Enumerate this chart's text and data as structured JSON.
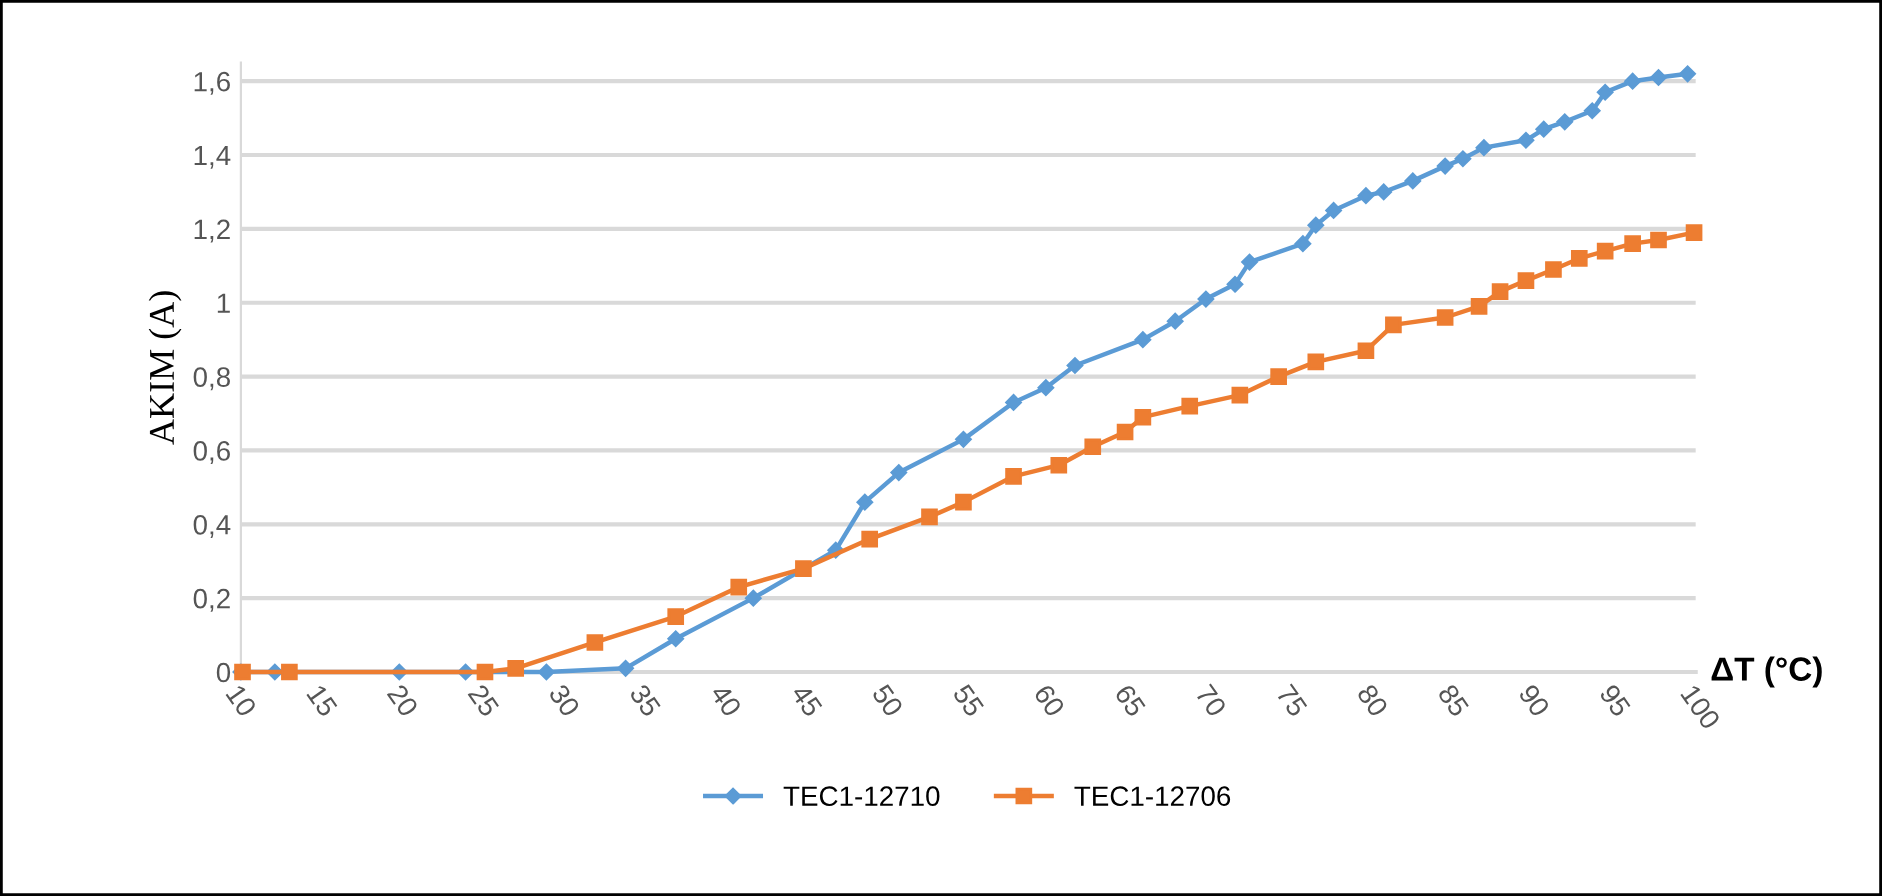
{
  "chart_data": {
    "type": "line",
    "ylabel": "AKIM (A)",
    "xlabel": "ΔT (°C)",
    "xlim": [
      10,
      100
    ],
    "xticks": [
      10,
      15,
      20,
      25,
      30,
      35,
      40,
      45,
      50,
      55,
      60,
      65,
      70,
      75,
      80,
      85,
      90,
      95,
      100
    ],
    "ylim": [
      0,
      1.65
    ],
    "yticks": [
      {
        "value": 0,
        "label": "0"
      },
      {
        "value": 0.2,
        "label": "0,2"
      },
      {
        "value": 0.4,
        "label": "0,4"
      },
      {
        "value": 0.6,
        "label": "0,6"
      },
      {
        "value": 0.8,
        "label": "0,8"
      },
      {
        "value": 1,
        "label": "1"
      },
      {
        "value": 1.2,
        "label": "1,2"
      },
      {
        "value": 1.4,
        "label": "1,4"
      },
      {
        "value": 1.6,
        "label": "1,6"
      }
    ],
    "grid": "y",
    "legend": "bottom",
    "series": [
      {
        "name": "TEC1-12710",
        "color": "#5b9bd5",
        "marker": "diamond",
        "x": [
          10,
          12.1,
          19.8,
          23.9,
          28.9,
          33.8,
          36.9,
          41.7,
          46.8,
          48.6,
          50.7,
          54.7,
          57.8,
          59.8,
          61.6,
          65.8,
          67.8,
          69.7,
          71.5,
          72.4,
          75.7,
          76.5,
          77.6,
          79.6,
          80.7,
          82.5,
          84.5,
          85.6,
          86.9,
          89.5,
          90.6,
          91.9,
          93.6,
          94.4,
          96.1,
          97.7,
          99.5
        ],
        "values": [
          0,
          0,
          0,
          0,
          0,
          0.01,
          0.09,
          0.2,
          0.33,
          0.46,
          0.54,
          0.63,
          0.73,
          0.77,
          0.83,
          0.9,
          0.95,
          1.01,
          1.05,
          1.11,
          1.16,
          1.21,
          1.25,
          1.29,
          1.3,
          1.33,
          1.37,
          1.39,
          1.42,
          1.44,
          1.47,
          1.49,
          1.52,
          1.57,
          1.6,
          1.61,
          1.62
        ]
      },
      {
        "name": "TEC1-12706",
        "color": "#ed7d31",
        "marker": "square",
        "x": [
          10.1,
          13,
          25.1,
          27,
          31.9,
          36.9,
          40.8,
          44.8,
          48.9,
          52.6,
          54.7,
          57.8,
          60.6,
          62.7,
          64.7,
          65.8,
          68.7,
          71.8,
          74.2,
          76.5,
          79.6,
          81.3,
          84.5,
          86.6,
          87.9,
          89.5,
          91.2,
          92.8,
          94.4,
          96.1,
          97.7,
          99.9
        ],
        "values": [
          0,
          0,
          0,
          0.01,
          0.08,
          0.15,
          0.23,
          0.28,
          0.36,
          0.42,
          0.46,
          0.53,
          0.56,
          0.61,
          0.65,
          0.69,
          0.72,
          0.75,
          0.8,
          0.84,
          0.87,
          0.94,
          0.96,
          0.99,
          1.03,
          1.06,
          1.09,
          1.12,
          1.14,
          1.16,
          1.17,
          1.19
        ]
      }
    ]
  }
}
